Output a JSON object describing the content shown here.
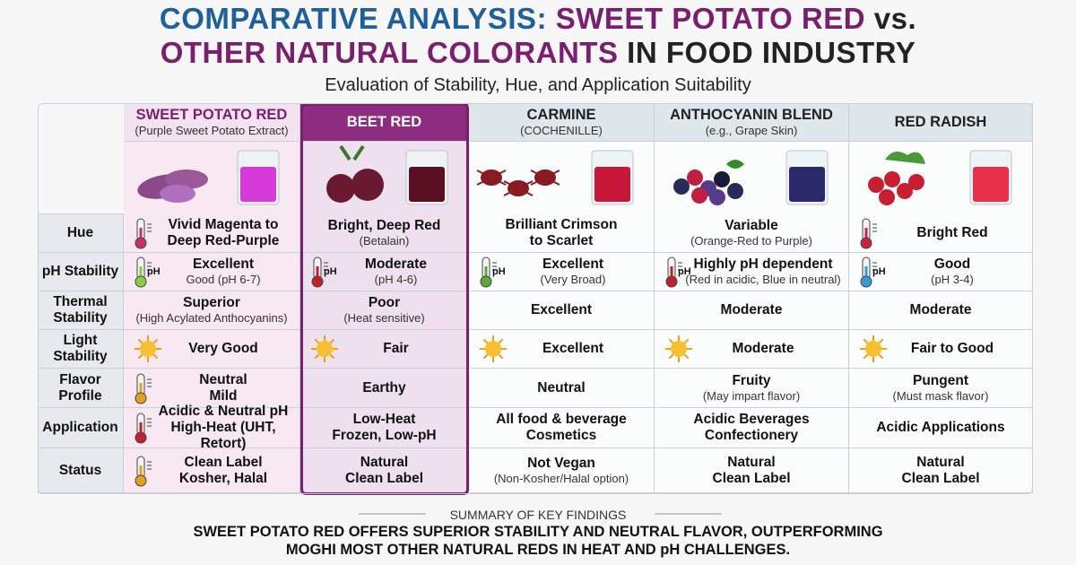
{
  "title": [
    {
      "text": "COMPARATIVE ANALYSIS: ",
      "color": "#1f5f9a"
    },
    {
      "text": "SWEET POTATO RED",
      "color": "#7a1f6e"
    },
    {
      "text": " vs.",
      "color": "#222"
    },
    {
      "text": "OTHER NATURAL COLORANTS",
      "color": "#7a1f6e",
      "break": true
    },
    {
      "text": " IN FOOD INDUSTRY",
      "color": "#222"
    }
  ],
  "subtitle": "Evaluation of Stability, Hue, and Application Suitability",
  "columns": [
    {
      "name": "SWEET POTATO RED",
      "sub": "(Purple Sweet Potato Extract)",
      "color": "#7a1f6e",
      "liquid": "#d63ad8"
    },
    {
      "name": "BEET RED",
      "color": "#ffffff",
      "liquid": "#5a0f22"
    },
    {
      "name": "CARMINE",
      "sub": "(COCHENILLE)",
      "color": "#222",
      "liquid": "#c8183a"
    },
    {
      "name": "ANTHOCYANIN BLEND",
      "sub": "(e.g., Grape Skin)",
      "color": "#222",
      "liquid": "#2a2a6a"
    },
    {
      "name": "RED RADISH",
      "color": "#222",
      "liquid": "#e8304a"
    }
  ],
  "rows": [
    {
      "label": "Hue",
      "cells": [
        {
          "main": [
            "Vivid Magenta to",
            "Deep Red-Purple"
          ]
        },
        {
          "main": [
            "Bright, Deep Red"
          ],
          "sub": "(Betalain)"
        },
        {
          "main": [
            "Brilliant Crimson",
            "to Scarlet"
          ]
        },
        {
          "main": [
            "Variable"
          ],
          "sub": "(Orange-Red to Purple)"
        },
        {
          "main": [
            "Bright Red"
          ]
        }
      ]
    },
    {
      "label": "pH Stability",
      "cells": [
        {
          "icon_text": "pH",
          "main": [
            "Excellent"
          ],
          "sub": "Good (pH 6-7)"
        },
        {
          "icon_text": "pH",
          "main": [
            "Moderate"
          ],
          "sub": "(pH 4-6)"
        },
        {
          "icon_text": "pH",
          "main": [
            "Excellent"
          ],
          "sub": "(Very Broad)"
        },
        {
          "icon_text": "pH",
          "main": [
            "Highly pH dependent"
          ],
          "sub": "(Red in acidic, Blue in neutral)"
        },
        {
          "icon_text": "pH",
          "main": [
            "Good"
          ],
          "sub": "(pH 3-4)"
        }
      ]
    },
    {
      "label": "Thermal Stability",
      "cells": [
        {
          "main": [
            "Superior"
          ],
          "sub": "(High Acylated Anthocyanins)"
        },
        {
          "main": [
            "Poor"
          ],
          "sub": "(Heat sensitive)"
        },
        {
          "main": [
            "Excellent"
          ]
        },
        {
          "main": [
            "Moderate"
          ]
        },
        {
          "main": [
            "Moderate"
          ]
        }
      ]
    },
    {
      "label": "Light Stability",
      "cells": [
        {
          "main": [
            "Very Good"
          ]
        },
        {
          "main": [
            "Fair"
          ]
        },
        {
          "main": [
            "Excellent"
          ]
        },
        {
          "main": [
            "Moderate"
          ]
        },
        {
          "main": [
            "Fair to Good"
          ]
        }
      ]
    },
    {
      "label": "Flavor Profile",
      "cells": [
        {
          "main": [
            "Neutral",
            "Mild"
          ]
        },
        {
          "main": [
            "Earthy"
          ]
        },
        {
          "main": [
            "Neutral"
          ]
        },
        {
          "main": [
            "Fruity"
          ],
          "sub": "(May impart flavor)"
        },
        {
          "main": [
            "Pungent"
          ],
          "sub": "(Must mask flavor)"
        }
      ]
    },
    {
      "label": "Application",
      "cells": [
        {
          "main": [
            "Acidic & Neutral pH",
            "High-Heat (UHT, Retort)"
          ]
        },
        {
          "main": [
            "Low-Heat",
            "Frozen, Low-pH"
          ]
        },
        {
          "main": [
            "All food & beverage",
            "Cosmetics"
          ]
        },
        {
          "main": [
            "Acidic Beverages",
            "Confectionery"
          ]
        },
        {
          "main": [
            "Acidic Applications"
          ]
        }
      ]
    },
    {
      "label": "Status",
      "cells": [
        {
          "main": [
            "Clean Label",
            "Kosher, Halal"
          ]
        },
        {
          "main": [
            "Natural",
            "Clean Label"
          ]
        },
        {
          "main": [
            "Not Vegan"
          ],
          "sub": "(Non-Kosher/Halal option)"
        },
        {
          "main": [
            "Natural",
            "Clean Label"
          ]
        },
        {
          "main": [
            "Natural",
            "Clean Label"
          ]
        }
      ]
    }
  ],
  "summary": {
    "heading": "SUMMARY OF KEY FINDINGS",
    "lines": [
      "SWEET POTATO RED OFFERS SUPERIOR STABILITY AND NEUTRAL FLAVOR, OUTPERFORMING",
      "MOGHI MOST OTHER NATURAL REDS IN HEAT AND pH CHALLENGES."
    ]
  }
}
